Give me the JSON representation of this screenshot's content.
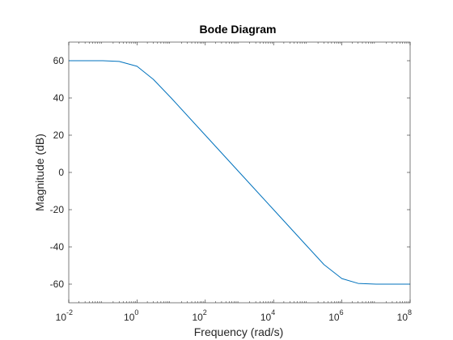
{
  "chart_data": {
    "type": "line",
    "title": "Bode Diagram",
    "xlabel": "Frequency  (rad/s)",
    "ylabel": "Magnitude (dB)",
    "xscale": "log",
    "xlim": [
      0.01,
      100000000
    ],
    "ylim": [
      -70,
      70
    ],
    "x_ticks": [
      {
        "base": "10",
        "exp": "-2"
      },
      {
        "base": "10",
        "exp": "0"
      },
      {
        "base": "10",
        "exp": "2"
      },
      {
        "base": "10",
        "exp": "4"
      },
      {
        "base": "10",
        "exp": "6"
      },
      {
        "base": "10",
        "exp": "8"
      }
    ],
    "y_ticks": [
      "60",
      "40",
      "20",
      "0",
      "-20",
      "-40",
      "-60"
    ],
    "grid": false,
    "line_color": "#0072bd",
    "series": [
      {
        "x": [
          0.01,
          0.1,
          0.3,
          1,
          3,
          10,
          100,
          1000,
          10000,
          100000,
          300000,
          1000000,
          3000000,
          10000000,
          100000000
        ],
        "y": [
          60,
          60,
          59.6,
          57,
          50,
          40,
          20,
          0,
          -20,
          -40,
          -49.5,
          -57,
          -59.6,
          -60,
          -60
        ]
      }
    ]
  }
}
